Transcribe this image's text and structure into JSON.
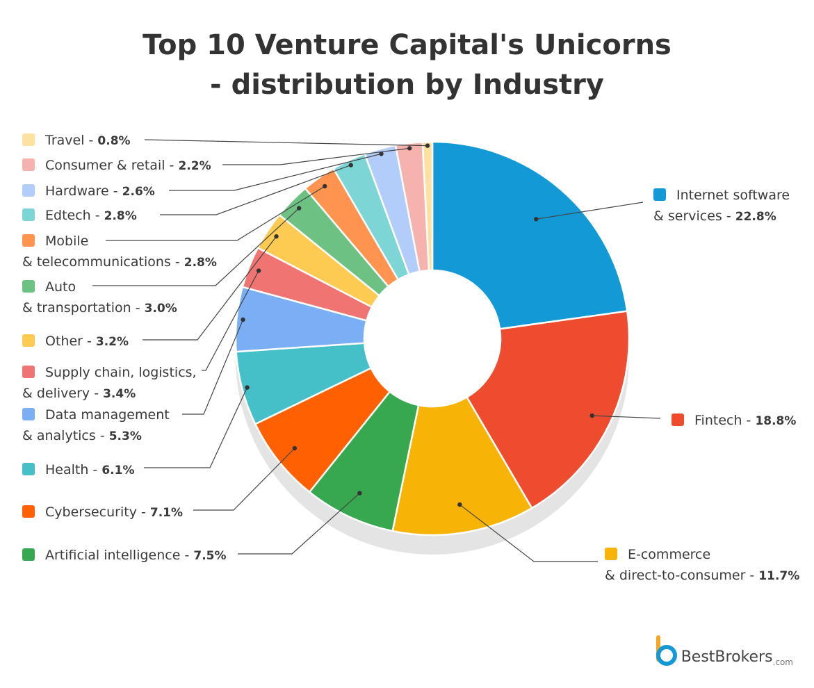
{
  "title_line1": "Top 10 Venture Capital's Unicorns",
  "title_line2": "- distribution by Industry",
  "logo": {
    "name": "BestBrokers",
    "domain": ".com",
    "mark": "b"
  },
  "chart_data": {
    "type": "pie",
    "variant": "donut",
    "unit": "%",
    "slices": [
      {
        "label": [
          "Internet software",
          "& services"
        ],
        "value": 22.8,
        "value_text": "22.8%",
        "color": "#1299d6"
      },
      {
        "label": [
          "Fintech"
        ],
        "value": 18.8,
        "value_text": "18.8%",
        "color": "#ef4b2f"
      },
      {
        "label": [
          "E-commerce",
          "& direct-to-consumer"
        ],
        "value": 11.7,
        "value_text": "11.7%",
        "color": "#f8b307"
      },
      {
        "label": [
          "Artificial intelligence"
        ],
        "value": 7.5,
        "value_text": "7.5%",
        "color": "#37a84f"
      },
      {
        "label": [
          "Cybersecurity"
        ],
        "value": 7.1,
        "value_text": "7.1%",
        "color": "#ff6102"
      },
      {
        "label": [
          "Health"
        ],
        "value": 6.1,
        "value_text": "6.1%",
        "color": "#45c0c8"
      },
      {
        "label": [
          "Data management",
          "& analytics"
        ],
        "value": 5.3,
        "value_text": "5.3%",
        "color": "#7aaef5"
      },
      {
        "label": [
          "Supply chain, logistics,",
          "& delivery"
        ],
        "value": 3.4,
        "value_text": "3.4%",
        "color": "#f07471"
      },
      {
        "label": [
          "Other"
        ],
        "value": 3.2,
        "value_text": "3.2%",
        "color": "#fdca52"
      },
      {
        "label": [
          "Auto",
          "& transportation"
        ],
        "value": 3.0,
        "value_text": "3.0%",
        "color": "#6dc283"
      },
      {
        "label": [
          "Mobile",
          "& telecommunications"
        ],
        "value": 2.8,
        "value_text": "2.8%",
        "color": "#ff9350"
      },
      {
        "label": [
          "Edtech"
        ],
        "value": 2.8,
        "value_text": "2.8%",
        "color": "#7dd5d6"
      },
      {
        "label": [
          "Hardware"
        ],
        "value": 2.6,
        "value_text": "2.6%",
        "color": "#b3cdfb"
      },
      {
        "label": [
          "Consumer & retail"
        ],
        "value": 2.2,
        "value_text": "2.2%",
        "color": "#f6b2ad"
      },
      {
        "label": [
          "Travel"
        ],
        "value": 0.8,
        "value_text": "0.8%",
        "color": "#fee1a0"
      }
    ]
  }
}
